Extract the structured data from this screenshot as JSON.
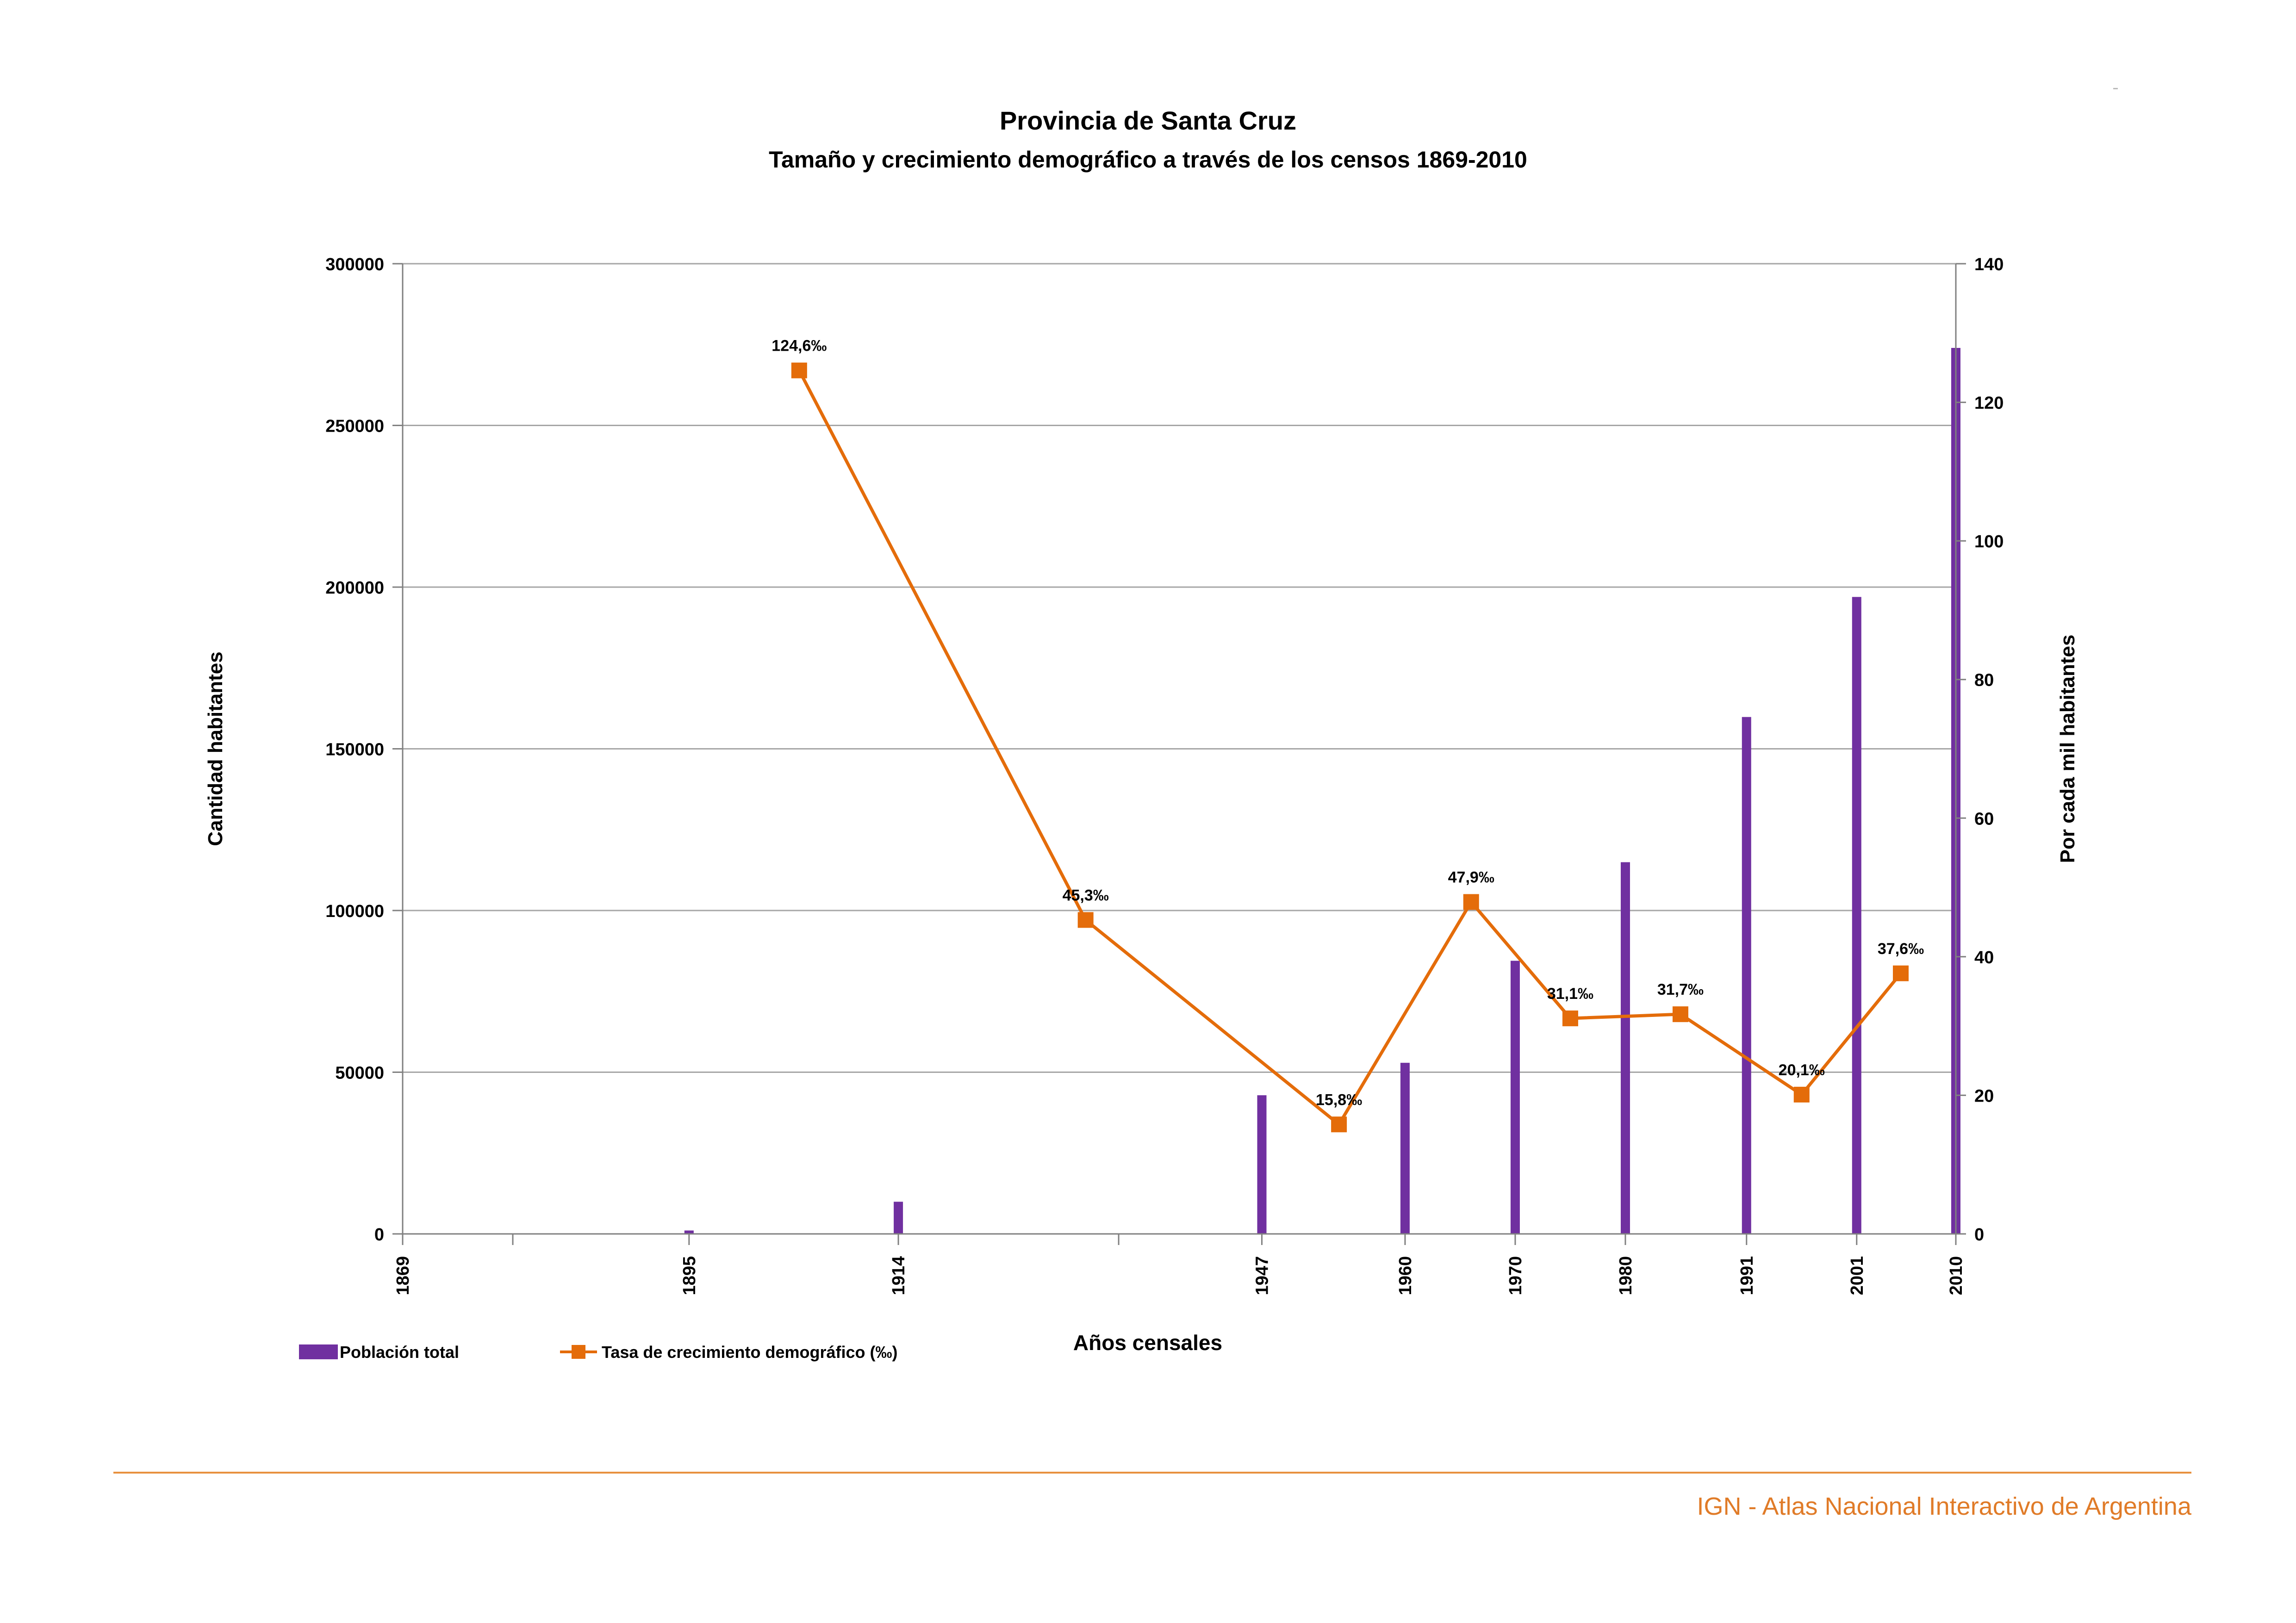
{
  "title": "Provincia de Santa Cruz",
  "subtitle": "Tamaño y crecimiento demográfico a través de los censos 1869-2010",
  "footer": "IGN - Atlas Nacional Interactivo de Argentina",
  "colors": {
    "bar": "#7030a0",
    "line": "#e46c0a",
    "grid": "#a6a6a6",
    "footer": "#e07b28"
  },
  "chart_data": {
    "type": "bar",
    "title": "Provincia de Santa Cruz",
    "subtitle": "Tamaño y crecimiento demográfico a través de los censos 1869-2010",
    "xlabel": "Años censales",
    "ylabel": "Cantidad habitantes",
    "y2label": "Por cada mil habitantes",
    "ylim": [
      0,
      300000
    ],
    "y2lim": [
      0,
      140
    ],
    "xlim": [
      1869,
      2010
    ],
    "yticks": [
      0,
      50000,
      100000,
      150000,
      200000,
      250000,
      300000
    ],
    "y2ticks": [
      0,
      20,
      40,
      60,
      80,
      100,
      120,
      140
    ],
    "x_tick_labels": [
      "1869",
      "1895",
      "1914",
      "1947",
      "1960",
      "1970",
      "1980",
      "1991",
      "2001",
      "2010"
    ],
    "x_minor_ticks": [
      1879,
      1934
    ],
    "grid": true,
    "legend_position": "bottom-left",
    "series": [
      {
        "name": "Población total",
        "type": "bar",
        "axis": "left",
        "x": [
          1895,
          1914,
          1947,
          1960,
          1970,
          1980,
          1991,
          2001,
          2010
        ],
        "values": [
          1058,
          9948,
          42880,
          52908,
          84457,
          114941,
          159839,
          196958,
          273964
        ]
      },
      {
        "name": "Tasa de crecimiento demográfico (‰)",
        "type": "line",
        "axis": "right",
        "x": [
          1905,
          1931,
          1954,
          1966,
          1975,
          1985,
          1996,
          2005
        ],
        "values": [
          124.6,
          45.3,
          15.8,
          47.9,
          31.1,
          31.7,
          20.1,
          37.6
        ],
        "labels": [
          "124,6‰",
          "45,3‰",
          "15,8‰",
          "47,9‰",
          "31,1‰",
          "31,7‰",
          "20,1‰",
          "37,6‰"
        ]
      }
    ]
  }
}
